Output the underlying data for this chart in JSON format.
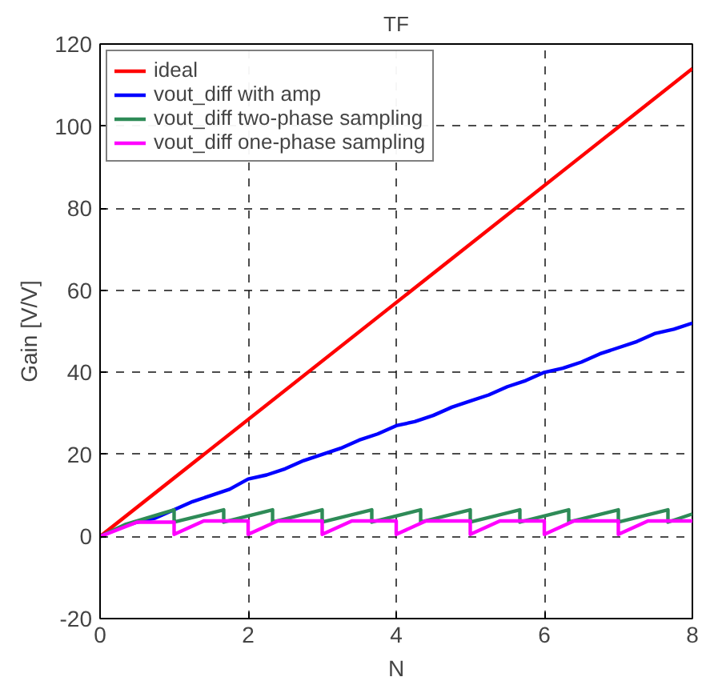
{
  "chart_data": {
    "type": "line",
    "title": "TF",
    "xlabel": "N",
    "ylabel": "Gain [V/V]",
    "xlim": [
      0,
      8
    ],
    "ylim": [
      -20,
      120
    ],
    "xticks": [
      0,
      2,
      4,
      6,
      8
    ],
    "yticks": [
      -20,
      0,
      20,
      40,
      60,
      80,
      100,
      120
    ],
    "grid": true,
    "legend": "top left",
    "line_style": "solid",
    "marker": "none",
    "series": [
      {
        "name": "ideal",
        "color": "#ff0000",
        "x": [
          0,
          8
        ],
        "values": [
          0,
          114
        ]
      },
      {
        "name": "vout_diff with amp",
        "color": "#0000ff",
        "x": [
          0,
          0.25,
          0.5,
          0.75,
          1,
          1.25,
          1.5,
          1.75,
          2,
          2.25,
          2.5,
          2.75,
          3,
          3.25,
          3.5,
          3.75,
          4,
          4.25,
          4.5,
          4.75,
          5,
          5.25,
          5.5,
          5.75,
          6,
          6.25,
          6.5,
          6.75,
          7,
          7.25,
          7.5,
          7.75,
          8
        ],
        "values": [
          0,
          2,
          3.5,
          4.5,
          6.5,
          8.5,
          10,
          11.5,
          14,
          15,
          16.5,
          18.5,
          20,
          21.5,
          23.5,
          25,
          27,
          28,
          29.5,
          31.5,
          33,
          34.5,
          36.5,
          38,
          40,
          41,
          42.5,
          44.5,
          46,
          47.5,
          49.5,
          50.5,
          52
        ]
      },
      {
        "name": "vout_diff two-phase sampling",
        "color": "#2e8b57",
        "x": [
          0,
          0.35,
          1.0,
          1.0,
          1.67,
          1.67,
          2.33,
          2.33,
          3.0,
          3.0,
          3.67,
          3.67,
          4.33,
          4.33,
          5.0,
          5.0,
          5.67,
          5.67,
          6.33,
          6.33,
          7.0,
          7.0,
          7.67,
          7.67,
          8
        ],
        "values": [
          0,
          3,
          6.5,
          3.5,
          6.5,
          3.5,
          6.5,
          3.5,
          6.5,
          3.5,
          6.5,
          3.5,
          6.5,
          3.5,
          6.5,
          3.5,
          6.5,
          3.5,
          6.5,
          3.5,
          6.5,
          3.5,
          6.5,
          3.5,
          5.5
        ]
      },
      {
        "name": "vout_diff one-phase sampling",
        "color": "#ff00ff",
        "x": [
          0,
          0.5,
          1.0,
          1.0,
          1.4,
          2.0,
          2.0,
          2.4,
          3.0,
          3.0,
          3.4,
          4.0,
          4.0,
          4.4,
          5.0,
          5.0,
          5.4,
          6.0,
          6.0,
          6.4,
          7.0,
          7.0,
          7.4,
          8
        ],
        "values": [
          0,
          3.5,
          3.5,
          0.5,
          3.8,
          3.8,
          0.5,
          3.8,
          3.8,
          0.5,
          3.8,
          3.8,
          0.5,
          3.8,
          3.8,
          0.5,
          3.8,
          3.8,
          0.5,
          3.8,
          3.8,
          0.5,
          3.8,
          3.8
        ]
      }
    ]
  }
}
